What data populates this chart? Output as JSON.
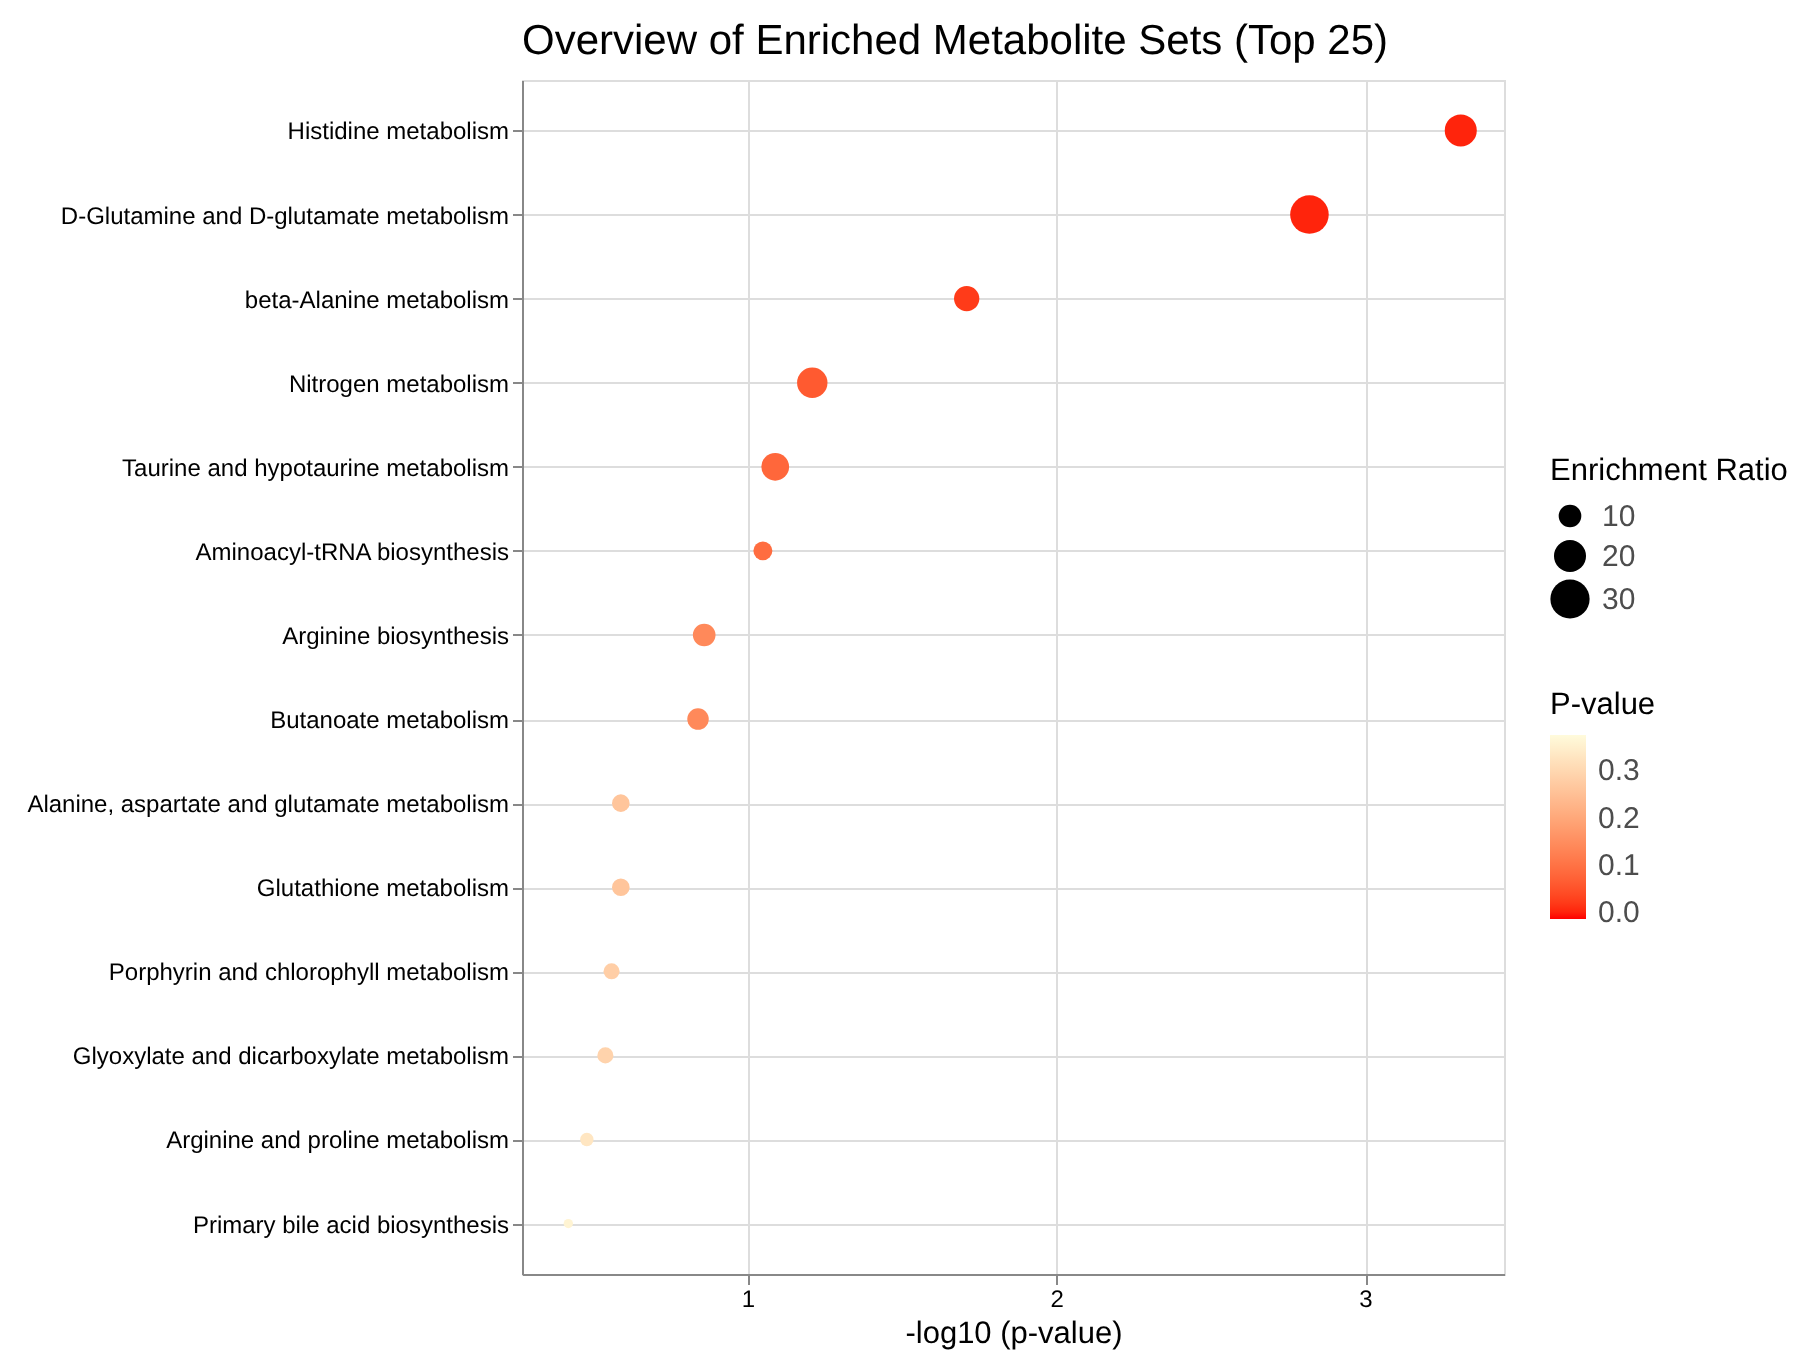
{
  "chart_data": {
    "type": "bubble",
    "orientation": "horizontal",
    "title": "Overview of Enriched Metabolite Sets (Top 25)",
    "xlabel": "-log10 (p-value)",
    "legend_title": "Enrichment Ratio",
    "clabel": "P-value",
    "categories": [
      "Histidine metabolism",
      "D-Glutamine and D-glutamate metabolism",
      "beta-Alanine metabolism",
      "Nitrogen metabolism",
      "Taurine and hypotaurine metabolism",
      "Aminoacyl-tRNA biosynthesis",
      "Arginine biosynthesis",
      "Butanoate metabolism",
      "Alanine, aspartate and glutamate metabolism",
      "Glutathione metabolism",
      "Porphyrin and chlorophyll metabolism",
      "Glyoxylate and dicarboxylate metabolism",
      "Arginine and proline metabolism",
      "Primary bile acid biosynthesis"
    ],
    "values": [
      3.31,
      2.82,
      1.71,
      1.21,
      1.09,
      1.05,
      0.86,
      0.84,
      0.59,
      0.59,
      0.56,
      0.54,
      0.48,
      0.42
    ],
    "sizes": [
      20,
      29,
      12.5,
      18,
      15,
      7,
      10,
      9,
      6,
      6,
      5,
      5,
      3.5,
      1.7
    ],
    "cvalues": [
      0,
      0,
      0.02,
      0.06,
      0.08,
      0.09,
      0.14,
      0.14,
      0.26,
      0.26,
      0.28,
      0.29,
      0.33,
      0.36
    ],
    "size_legend": [
      10,
      20,
      30
    ],
    "xlim": [
      0.27,
      3.45
    ],
    "xticks": [
      1,
      2,
      3
    ],
    "clim": [
      -0.015,
      0.375
    ],
    "cticks": [
      {
        "value": 0,
        "label": "0.0"
      },
      0.1,
      0.2,
      0.3
    ],
    "marker": "circle",
    "grid": true
  }
}
